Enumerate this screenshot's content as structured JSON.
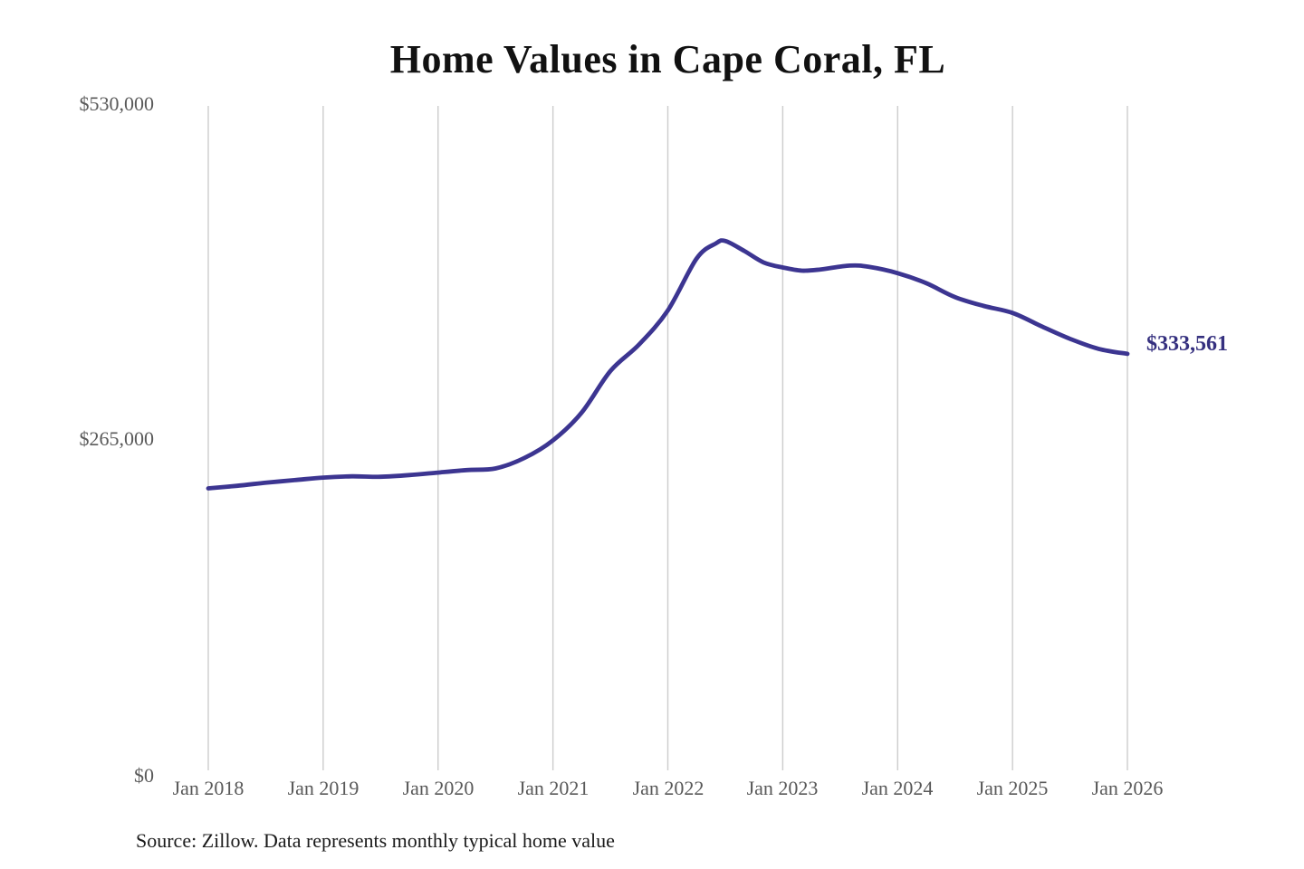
{
  "chart_data": {
    "type": "line",
    "title": "Home Values in Cape Coral, FL",
    "source_note": "Source: Zillow. Data represents monthly typical home value",
    "legend": "none",
    "grid": "vertical-only",
    "ylim": [
      0,
      530000
    ],
    "y_ticks": [
      {
        "label": "$530,000",
        "value": 530000
      },
      {
        "label": "$265,000",
        "value": 265000
      },
      {
        "label": "$0",
        "value": 0
      }
    ],
    "x_tick_labels": [
      "Jan 2018",
      "Jan 2019",
      "Jan 2020",
      "Jan 2021",
      "Jan 2022",
      "Jan 2023",
      "Jan 2024",
      "Jan 2025",
      "Jan 2026"
    ],
    "series": [
      {
        "name": "Typical home value (USD)",
        "points": [
          [
            "2018-01",
            227000
          ],
          [
            "2018-04",
            229000
          ],
          [
            "2018-07",
            231500
          ],
          [
            "2018-10",
            233500
          ],
          [
            "2019-01",
            235500
          ],
          [
            "2019-04",
            236500
          ],
          [
            "2019-07",
            236200
          ],
          [
            "2019-10",
            237500
          ],
          [
            "2020-01",
            239500
          ],
          [
            "2020-04",
            241500
          ],
          [
            "2020-07",
            242800
          ],
          [
            "2020-10",
            251000
          ],
          [
            "2021-01",
            265000
          ],
          [
            "2021-04",
            287000
          ],
          [
            "2021-07",
            320000
          ],
          [
            "2021-10",
            341000
          ],
          [
            "2022-01",
            368000
          ],
          [
            "2022-04",
            409000
          ],
          [
            "2022-06",
            421000
          ],
          [
            "2022-07",
            423000
          ],
          [
            "2022-09",
            415000
          ],
          [
            "2022-11",
            406000
          ],
          [
            "2023-01",
            402000
          ],
          [
            "2023-03",
            399500
          ],
          [
            "2023-05",
            400500
          ],
          [
            "2023-08",
            403500
          ],
          [
            "2023-10",
            402500
          ],
          [
            "2024-01",
            397500
          ],
          [
            "2024-04",
            389500
          ],
          [
            "2024-07",
            378500
          ],
          [
            "2024-10",
            371500
          ],
          [
            "2025-01",
            366000
          ],
          [
            "2025-04",
            355500
          ],
          [
            "2025-07",
            345500
          ],
          [
            "2025-10",
            337500
          ],
          [
            "2026-01",
            333561
          ]
        ]
      }
    ],
    "end_label": "$333,561",
    "end_value": 333561,
    "line_color": "#3c3591",
    "end_label_color": "#35307f",
    "axis_text_color": "#595959",
    "grid_color": "#cccccc",
    "title_color": "#111111"
  }
}
